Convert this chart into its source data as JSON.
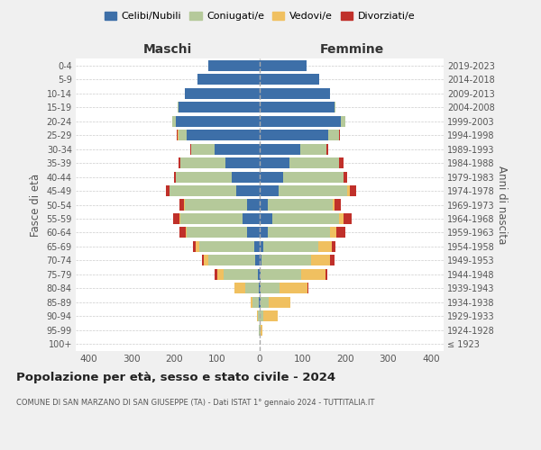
{
  "age_groups": [
    "100+",
    "95-99",
    "90-94",
    "85-89",
    "80-84",
    "75-79",
    "70-74",
    "65-69",
    "60-64",
    "55-59",
    "50-54",
    "45-49",
    "40-44",
    "35-39",
    "30-34",
    "25-29",
    "20-24",
    "15-19",
    "10-14",
    "5-9",
    "0-4"
  ],
  "birth_years": [
    "≤ 1923",
    "1924-1928",
    "1929-1933",
    "1934-1938",
    "1939-1943",
    "1944-1948",
    "1949-1953",
    "1954-1958",
    "1959-1963",
    "1964-1968",
    "1969-1973",
    "1974-1978",
    "1979-1983",
    "1984-1988",
    "1989-1993",
    "1994-1998",
    "1999-2003",
    "2004-2008",
    "2009-2013",
    "2014-2018",
    "2019-2023"
  ],
  "maschi": {
    "celibi": [
      0,
      0,
      0,
      2,
      3,
      5,
      10,
      12,
      30,
      40,
      30,
      55,
      65,
      80,
      105,
      170,
      195,
      190,
      175,
      145,
      120
    ],
    "coniugati": [
      1,
      2,
      5,
      15,
      30,
      80,
      110,
      130,
      140,
      145,
      145,
      155,
      130,
      105,
      55,
      20,
      10,
      2,
      0,
      0,
      0
    ],
    "vedovi": [
      0,
      0,
      2,
      5,
      25,
      15,
      10,
      8,
      2,
      2,
      2,
      0,
      0,
      0,
      0,
      2,
      0,
      0,
      0,
      0,
      0
    ],
    "divorziati": [
      0,
      0,
      0,
      0,
      0,
      5,
      5,
      5,
      15,
      15,
      10,
      10,
      5,
      5,
      2,
      2,
      0,
      0,
      0,
      0,
      0
    ]
  },
  "femmine": {
    "nubili": [
      0,
      0,
      0,
      2,
      2,
      3,
      5,
      8,
      20,
      30,
      20,
      45,
      55,
      70,
      95,
      160,
      190,
      175,
      165,
      140,
      110
    ],
    "coniugate": [
      1,
      2,
      8,
      20,
      45,
      95,
      115,
      130,
      145,
      155,
      150,
      160,
      140,
      115,
      60,
      25,
      10,
      2,
      0,
      0,
      0
    ],
    "vedove": [
      0,
      5,
      35,
      50,
      65,
      55,
      45,
      30,
      15,
      10,
      5,
      5,
      0,
      0,
      0,
      0,
      0,
      0,
      0,
      0,
      0
    ],
    "divorziate": [
      0,
      0,
      0,
      0,
      2,
      5,
      10,
      10,
      20,
      20,
      15,
      15,
      10,
      10,
      5,
      2,
      0,
      0,
      0,
      0,
      0
    ]
  },
  "colors": {
    "celibi": "#3d6fa8",
    "coniugati": "#b5c99a",
    "vedovi": "#f0c060",
    "divorziati": "#c0302a"
  },
  "xlim": 430,
  "title": "Popolazione per età, sesso e stato civile - 2024",
  "subtitle": "COMUNE DI SAN MARZANO DI SAN GIUSEPPE (TA) - Dati ISTAT 1° gennaio 2024 - TUTTITALIA.IT",
  "ylabel_left": "Fasce di età",
  "ylabel_right": "Anni di nascita",
  "xlabel_maschi": "Maschi",
  "xlabel_femmine": "Femmine",
  "bg_color": "#f0f0f0",
  "plot_bg": "#ffffff"
}
